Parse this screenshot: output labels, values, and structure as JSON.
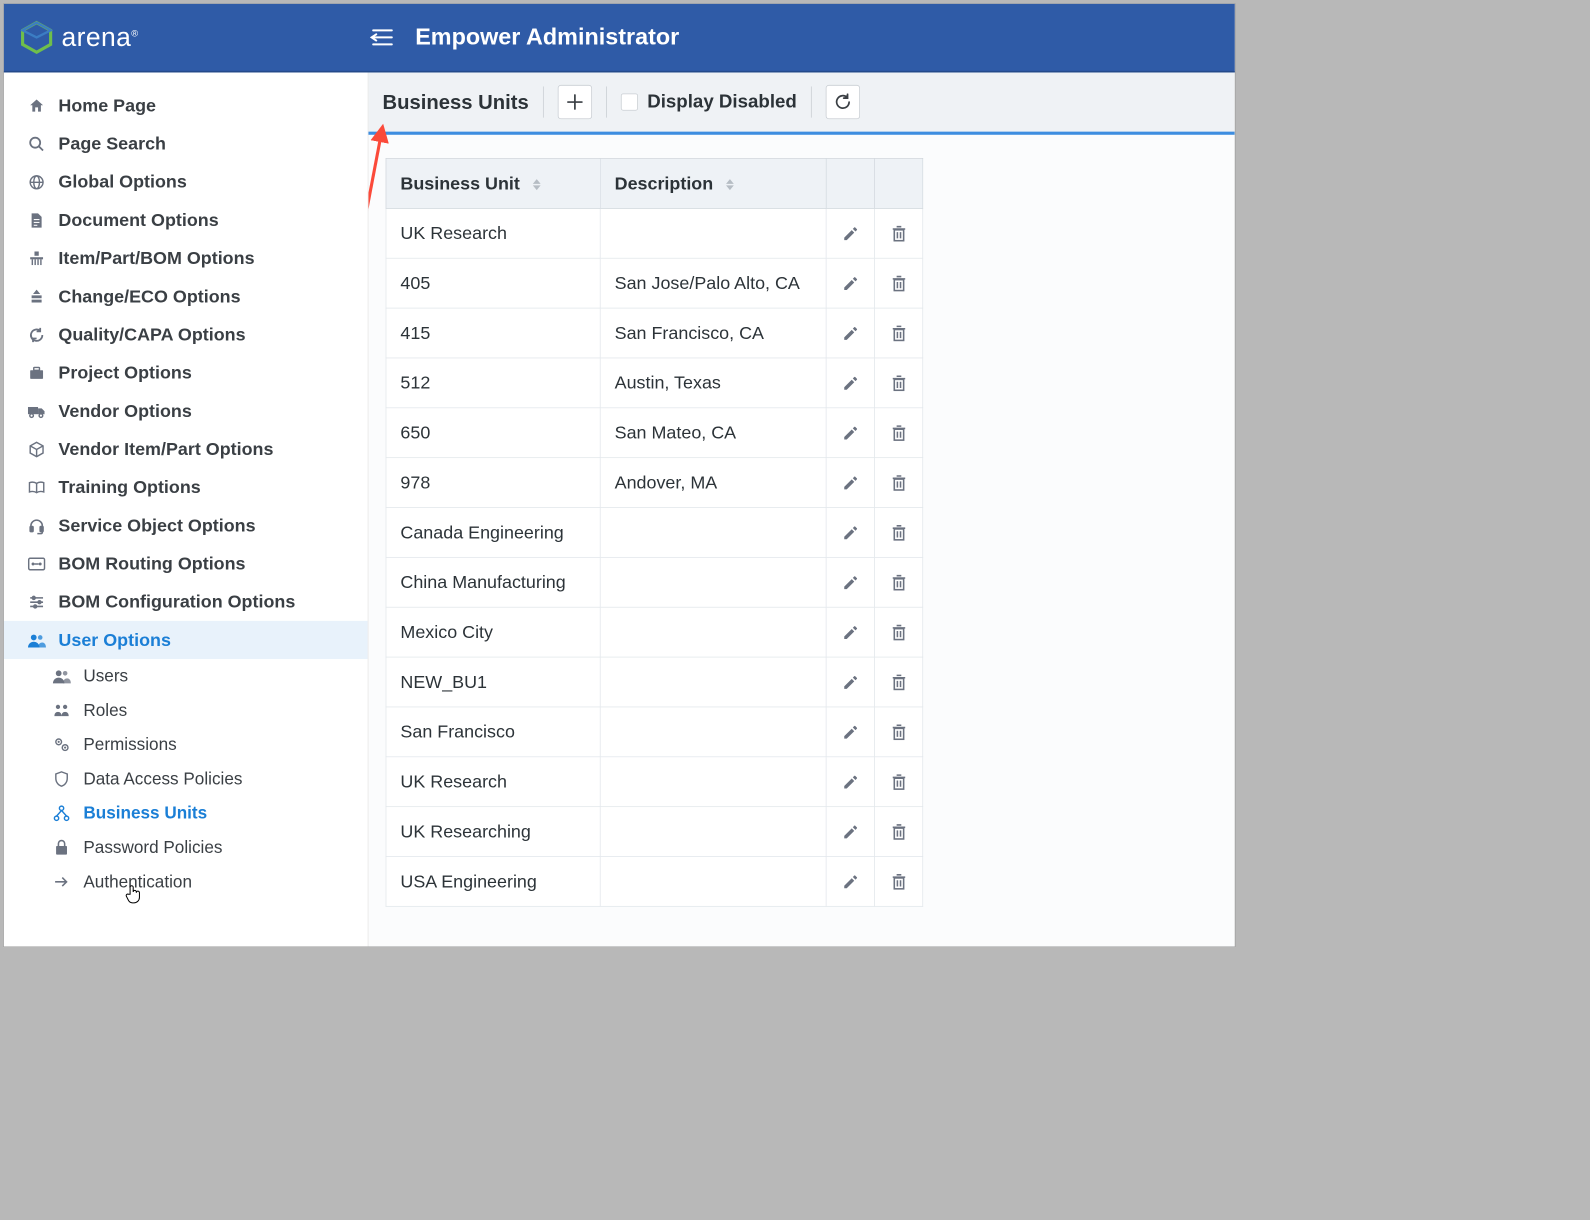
{
  "brand": {
    "name": "arena"
  },
  "header": {
    "title": "Empower Administrator"
  },
  "colors": {
    "header_bg": "#2f5ba7",
    "accent": "#1b7fd6",
    "toolbar_border": "#3d8de0",
    "arrow": "#fb4a3a"
  },
  "sidebar": {
    "items": [
      {
        "icon": "home",
        "label": "Home Page"
      },
      {
        "icon": "search",
        "label": "Page Search"
      },
      {
        "icon": "globe",
        "label": "Global Options"
      },
      {
        "icon": "document",
        "label": "Document Options"
      },
      {
        "icon": "part",
        "label": "Item/Part/BOM Options"
      },
      {
        "icon": "change",
        "label": "Change/ECO Options"
      },
      {
        "icon": "refresh-cycle",
        "label": "Quality/CAPA Options"
      },
      {
        "icon": "briefcase",
        "label": "Project Options"
      },
      {
        "icon": "truck",
        "label": "Vendor Options"
      },
      {
        "icon": "box",
        "label": "Vendor Item/Part Options"
      },
      {
        "icon": "book",
        "label": "Training Options"
      },
      {
        "icon": "headset",
        "label": "Service Object Options"
      },
      {
        "icon": "routing",
        "label": "BOM Routing Options"
      },
      {
        "icon": "sliders",
        "label": "BOM Configuration Options"
      },
      {
        "icon": "users",
        "label": "User Options",
        "active": true
      }
    ],
    "sub": [
      {
        "icon": "users",
        "label": "Users"
      },
      {
        "icon": "roles",
        "label": "Roles"
      },
      {
        "icon": "gears",
        "label": "Permissions"
      },
      {
        "icon": "shield",
        "label": "Data Access Policies"
      },
      {
        "icon": "org",
        "label": "Business Units",
        "active": true
      },
      {
        "icon": "lock",
        "label": "Password Policies"
      },
      {
        "icon": "arrow-right",
        "label": "Authentication"
      }
    ]
  },
  "toolbar": {
    "title": "Business Units",
    "checkbox_label": "Display Disabled"
  },
  "table": {
    "columns": [
      "Business Unit",
      "Description"
    ],
    "rows": [
      {
        "name": "UK Research",
        "desc": ""
      },
      {
        "name": "405",
        "desc": "San Jose/Palo Alto, CA"
      },
      {
        "name": "415",
        "desc": "San Francisco, CA"
      },
      {
        "name": "512",
        "desc": "Austin, Texas"
      },
      {
        "name": "650",
        "desc": "San Mateo, CA"
      },
      {
        "name": "978",
        "desc": "Andover, MA"
      },
      {
        "name": "Canada Engineering",
        "desc": ""
      },
      {
        "name": "China Manufacturing",
        "desc": ""
      },
      {
        "name": "Mexico City",
        "desc": ""
      },
      {
        "name": "NEW_BU1",
        "desc": ""
      },
      {
        "name": "San Francisco",
        "desc": ""
      },
      {
        "name": "UK Research",
        "desc": ""
      },
      {
        "name": "UK Researching",
        "desc": ""
      },
      {
        "name": "USA Engineering",
        "desc": ""
      }
    ]
  }
}
